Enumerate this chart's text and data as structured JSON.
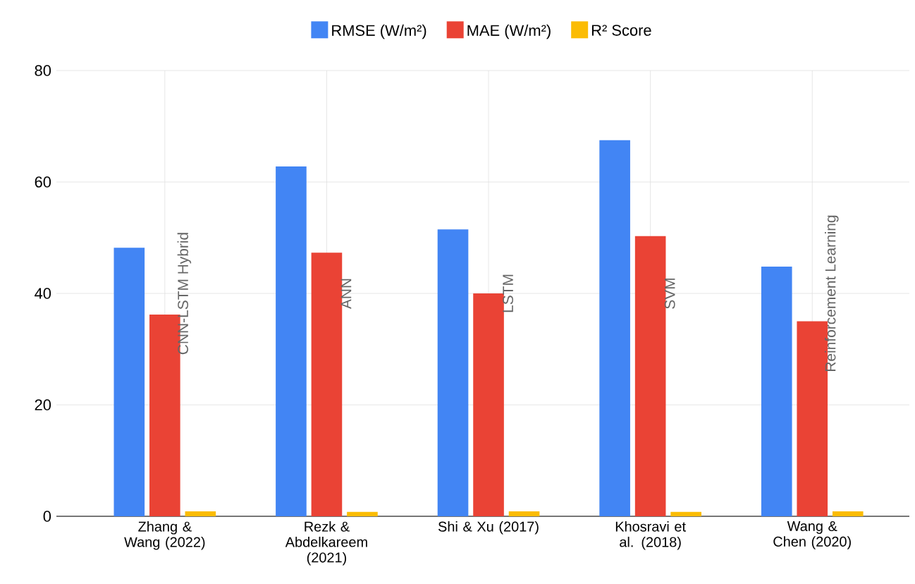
{
  "chart_data": {
    "type": "bar",
    "categories": [
      "Zhang & Wang (2022)",
      "Rezk & Abdelkareem (2021)",
      "Shi & Xu (2017)",
      "Khosravi et al. (2018)",
      "Wang & Chen (2020)"
    ],
    "series": [
      {
        "name": "RMSE (W/m²)",
        "color": "#4285f4",
        "values": [
          48.2,
          62.8,
          51.5,
          67.5,
          44.8
        ]
      },
      {
        "name": "MAE (W/m²)",
        "color": "#ea4335",
        "values": [
          36.2,
          47.3,
          40.0,
          50.3,
          35.0
        ]
      },
      {
        "name": "R² Score",
        "color": "#fbbc04",
        "values": [
          0.9,
          0.8,
          0.9,
          0.8,
          0.9
        ]
      }
    ],
    "annotations": [
      "CNN-LSTM Hybrid",
      "ANN",
      "LSTM",
      "SVM",
      "Reinforcement Learning"
    ],
    "ylim": [
      0,
      80
    ],
    "yticks": [
      0,
      20,
      40,
      60,
      80
    ],
    "grid": true,
    "legend": "top"
  }
}
